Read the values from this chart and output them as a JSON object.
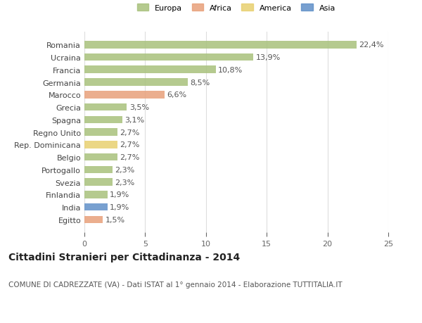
{
  "countries": [
    "Romania",
    "Ucraina",
    "Francia",
    "Germania",
    "Marocco",
    "Grecia",
    "Spagna",
    "Regno Unito",
    "Rep. Dominicana",
    "Belgio",
    "Portogallo",
    "Svezia",
    "Finlandia",
    "India",
    "Egitto"
  ],
  "values": [
    22.4,
    13.9,
    10.8,
    8.5,
    6.6,
    3.5,
    3.1,
    2.7,
    2.7,
    2.7,
    2.3,
    2.3,
    1.9,
    1.9,
    1.5
  ],
  "categories": [
    "Europa",
    "Europa",
    "Europa",
    "Europa",
    "Africa",
    "Europa",
    "Europa",
    "Europa",
    "America",
    "Europa",
    "Europa",
    "Europa",
    "Europa",
    "Asia",
    "Africa"
  ],
  "category_colors": {
    "Europa": "#a8c17c",
    "Africa": "#e8a07a",
    "America": "#e8d070",
    "Asia": "#6090c8"
  },
  "legend_categories": [
    "Europa",
    "Africa",
    "America",
    "Asia"
  ],
  "title": "Cittadini Stranieri per Cittadinanza - 2014",
  "subtitle": "COMUNE DI CADREZZATE (VA) - Dati ISTAT al 1° gennaio 2014 - Elaborazione TUTTITALIA.IT",
  "xlim": [
    0,
    25
  ],
  "xticks": [
    0,
    5,
    10,
    15,
    20,
    25
  ],
  "background_color": "#ffffff",
  "grid_color": "#dddddd",
  "bar_height": 0.6,
  "label_fontsize": 8,
  "title_fontsize": 10,
  "subtitle_fontsize": 7.5,
  "tick_fontsize": 8
}
